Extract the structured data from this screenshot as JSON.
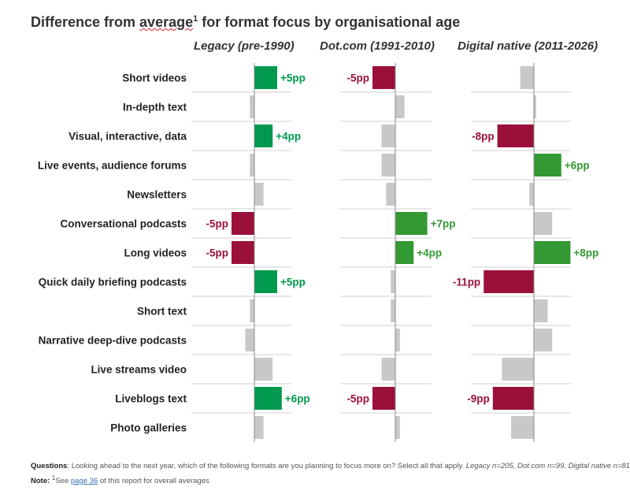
{
  "title": {
    "prefix": "Difference from ",
    "wavy": "average",
    "sup": "1",
    "suffix": " for format focus by organisational age"
  },
  "colors": {
    "positive": "#00994d",
    "positive_alt": "#339933",
    "negative": "#9b1039",
    "neutral": "#c8c8c8",
    "axis": "#888888",
    "rowline": "#d0d0d0"
  },
  "chart_data": {
    "type": "bar",
    "orientation": "horizontal",
    "categories": [
      "Short videos",
      "In-depth text",
      "Visual, interactive, data",
      "Live events, audience forums",
      "Newsletters",
      "Conversational podcasts",
      "Long videos",
      "Quick daily briefing podcasts",
      "Short text",
      "Narrative deep-dive podcasts",
      "Live streams video",
      "Liveblogs text",
      "Photo galleries"
    ],
    "unit": "pp",
    "series": [
      {
        "name": "Legacy (pre-1990)",
        "values": [
          5,
          -1,
          4,
          -1,
          2,
          -5,
          -5,
          5,
          -1,
          -2,
          4,
          6,
          2
        ],
        "labels": [
          "+5pp",
          "",
          "+4pp",
          "",
          "",
          "-5pp",
          "-5pp",
          "+5pp",
          "",
          "",
          "",
          "+6pp",
          ""
        ],
        "highlight": [
          "pos",
          "",
          "pos",
          "",
          "",
          "neg",
          "neg",
          "pos",
          "",
          "",
          "",
          "pos",
          ""
        ],
        "positive_color": "#00994d"
      },
      {
        "name": "Dot.com (1991-2010)",
        "values": [
          -5,
          2,
          -3,
          -3,
          -2,
          7,
          4,
          -1,
          -1,
          1,
          -3,
          -5,
          1
        ],
        "labels": [
          "-5pp",
          "",
          "",
          "",
          "",
          "+7pp",
          "+4pp",
          "",
          "",
          "",
          "",
          "-5pp",
          ""
        ],
        "highlight": [
          "neg",
          "",
          "",
          "",
          "",
          "pos",
          "pos",
          "",
          "",
          "",
          "",
          "neg",
          ""
        ],
        "positive_color": "#339933"
      },
      {
        "name": "Digital native (2011-2026)",
        "values": [
          -3,
          0.5,
          -8,
          6,
          -1,
          4,
          8,
          -11,
          3,
          4,
          -7,
          -9,
          -5
        ],
        "labels": [
          "",
          "",
          "-8pp",
          "+6pp",
          "",
          "",
          "+8pp",
          "-11pp",
          "",
          "",
          "",
          "-9pp",
          ""
        ],
        "highlight": [
          "",
          "",
          "neg",
          "pos",
          "",
          "",
          "pos",
          "neg",
          "",
          "",
          "",
          "neg",
          ""
        ],
        "positive_color": "#339933"
      }
    ]
  },
  "footer": {
    "q_label": "Questions",
    "q_text": ": Looking ahead to the next year, which of the following formats are you planning to focus more on? Select all that apply. ",
    "n_legacy": "Legacy n=205, ",
    "n_dotcom": "Dot.com n=99, ",
    "n_digital": "Digital native n=81",
    "note_label": "Note: ",
    "note_sup": "1",
    "note_pre": "See ",
    "note_link": "page 36",
    "note_post": " of this report for overall averages"
  }
}
